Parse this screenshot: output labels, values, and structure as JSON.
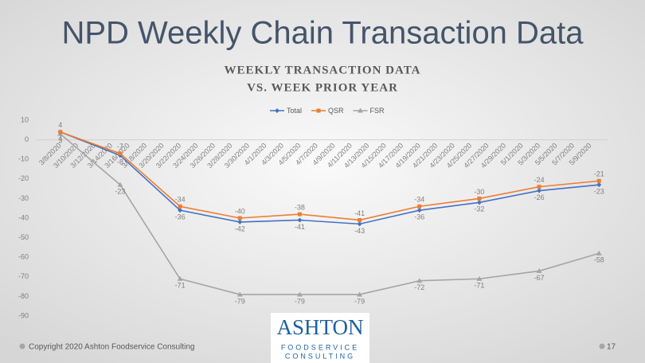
{
  "slide": {
    "title": "NPD Weekly Chain Transaction Data",
    "footer": "Copyright 2020 Ashton Foodservice Consulting",
    "page_number": "17",
    "logo": [
      "ASHTON",
      "FOODSERVICE",
      "CONSULTING"
    ]
  },
  "chart_data": {
    "type": "line",
    "title": [
      "WEEKLY TRANSACTION DATA",
      "VS. WEEK PRIOR YEAR"
    ],
    "x": [
      "3/8/2020",
      "3/15/2020",
      "3/22/2020",
      "3/29/2020",
      "4/5/2020",
      "4/12/2020",
      "4/19/2020",
      "4/26/2020",
      "5/3/2020",
      "5/10/2020"
    ],
    "series": [
      {
        "name": "Total",
        "color": "#4472c4",
        "marker": "diamond",
        "values": [
          4,
          -8,
          -36,
          -42,
          -41,
          -43,
          -36,
          -32,
          -26,
          -23
        ]
      },
      {
        "name": "QSR",
        "color": "#ed7d31",
        "marker": "square",
        "values": [
          4,
          -7,
          -34,
          -40,
          -38,
          -41,
          -34,
          -30,
          -24,
          -21
        ]
      },
      {
        "name": "FSR",
        "color": "#a5a5a5",
        "marker": "triangle",
        "values": [
          3,
          -23,
          -71,
          -79,
          -79,
          -79,
          -72,
          -71,
          -67,
          -58
        ]
      }
    ],
    "xlim": [
      "3/7/2020",
      "5/11/2020"
    ],
    "xticks": [
      "3/8/2020",
      "3/10/2020",
      "3/12/2020",
      "3/14/2020",
      "3/16/2020",
      "3/18/2020",
      "3/20/2020",
      "3/22/2020",
      "3/24/2020",
      "3/26/2020",
      "3/28/2020",
      "3/30/2020",
      "4/1/2020",
      "4/3/2020",
      "4/5/2020",
      "4/7/2020",
      "4/9/2020",
      "4/11/2020",
      "4/13/2020",
      "4/15/2020",
      "4/17/2020",
      "4/19/2020",
      "4/21/2020",
      "4/23/2020",
      "4/25/2020",
      "4/27/2020",
      "4/29/2020",
      "5/1/2020",
      "5/3/2020",
      "5/5/2020",
      "5/7/2020",
      "5/9/2020"
    ],
    "ylim": [
      -90,
      10
    ],
    "yticks": [
      -90,
      -80,
      -70,
      -60,
      -50,
      -40,
      -30,
      -20,
      -10,
      0,
      10
    ],
    "grid": false,
    "legend": "top"
  }
}
